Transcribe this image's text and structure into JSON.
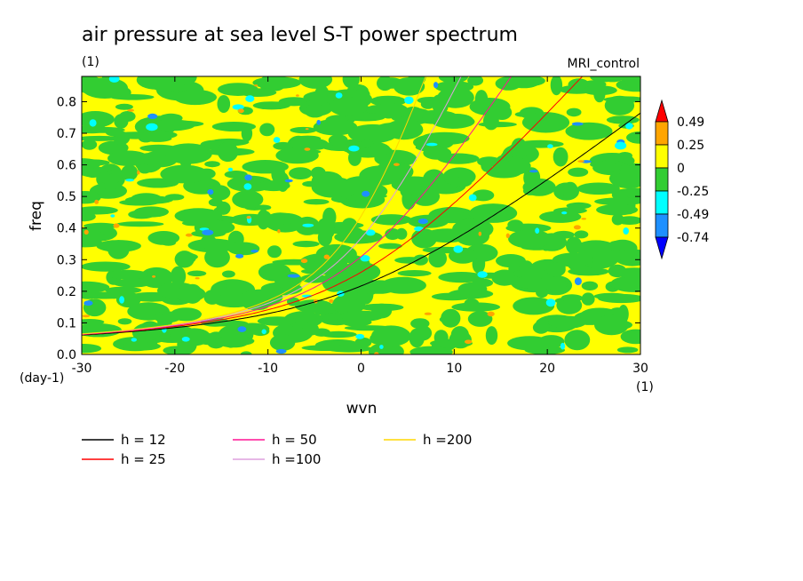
{
  "chart_data": {
    "type": "heatmap",
    "title": "air pressure at sea level S-T power spectrum",
    "subtitle_left": "(1)",
    "subtitle_right": "MRI_control",
    "xlabel": "wvn",
    "ylabel": "freq",
    "x_unit": "(1)",
    "y_unit": "(day-1)",
    "xlim": [
      -30,
      30
    ],
    "ylim": [
      0,
      0.88
    ],
    "x_ticks": [
      "-30",
      "-20",
      "-10",
      "0",
      "10",
      "20",
      "30"
    ],
    "x_tick_values": [
      -30,
      -20,
      -10,
      0,
      10,
      20,
      30
    ],
    "y_ticks": [
      "0.0",
      "0.1",
      "0.2",
      "0.3",
      "0.4",
      "0.5",
      "0.6",
      "0.7",
      "0.8"
    ],
    "y_tick_values": [
      0,
      0.1,
      0.2,
      0.3,
      0.4,
      0.5,
      0.6,
      0.7,
      0.8
    ],
    "colorbar": {
      "labels": [
        "0.49",
        "0.25",
        "0",
        "-0.25",
        "-0.49",
        "-0.74"
      ],
      "colors": [
        "#ff0000",
        "#ffa500",
        "#ffff00",
        "#32cd32",
        "#00ffff",
        "#1e90ff",
        "#0000ff"
      ]
    },
    "curves": [
      {
        "name": "h = 12",
        "h": 12,
        "color": "#000000"
      },
      {
        "name": "h = 25",
        "h": 25,
        "color": "#ff0000"
      },
      {
        "name": "h = 50",
        "h": 50,
        "color": "#ff1493"
      },
      {
        "name": "h =100",
        "h": 100,
        "color": "#dda0dd"
      },
      {
        "name": "h =200",
        "h": 200,
        "color": "#ffd700"
      }
    ],
    "grid": false
  }
}
